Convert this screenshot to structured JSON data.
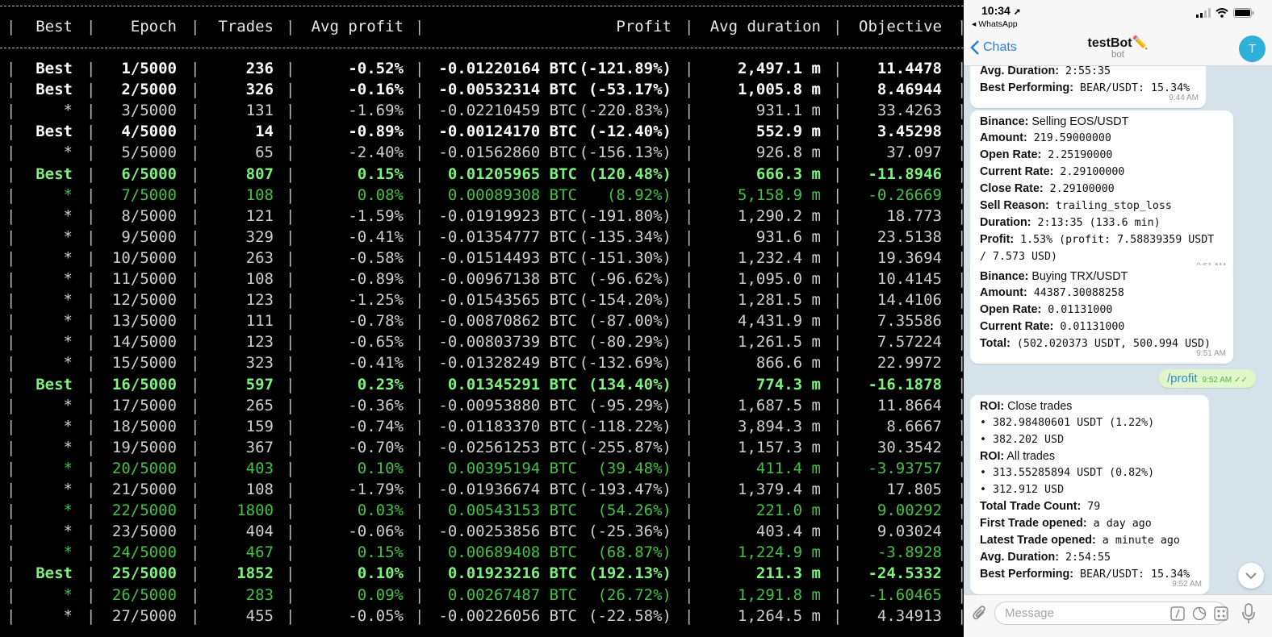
{
  "terminal": {
    "headers": [
      "Best",
      "Epoch",
      "Trades",
      "Avg profit",
      "Profit",
      "Avg duration",
      "Objective"
    ],
    "rows": [
      {
        "style": "best",
        "best": "Best",
        "epoch": "1/5000",
        "trades": "236",
        "avg": "-0.52%",
        "btc": "-0.01220164 BTC",
        "pct": "(-121.89%)",
        "dur": "2,497.1 m",
        "obj": "11.4478"
      },
      {
        "style": "best",
        "best": "Best",
        "epoch": "2/5000",
        "trades": "326",
        "avg": "-0.16%",
        "btc": "-0.00532314 BTC",
        "pct": "(-53.17%)",
        "dur": "1,005.8 m",
        "obj": "8.46944"
      },
      {
        "style": "norm",
        "best": "*",
        "epoch": "3/5000",
        "trades": "131",
        "avg": "-1.69%",
        "btc": "-0.02210459 BTC",
        "pct": "(-220.83%)",
        "dur": "931.1 m",
        "obj": "33.4263"
      },
      {
        "style": "best",
        "best": "Best",
        "epoch": "4/5000",
        "trades": "14",
        "avg": "-0.89%",
        "btc": "-0.00124170 BTC",
        "pct": "(-12.40%)",
        "dur": "552.9 m",
        "obj": "3.45298"
      },
      {
        "style": "norm",
        "best": "*",
        "epoch": "5/5000",
        "trades": "65",
        "avg": "-2.40%",
        "btc": "-0.01562860 BTC",
        "pct": "(-156.13%)",
        "dur": "926.8 m",
        "obj": "37.097"
      },
      {
        "style": "gbest",
        "best": "Best",
        "epoch": "6/5000",
        "trades": "807",
        "avg": "0.15%",
        "btc": "0.01205965 BTC",
        "pct": "(120.48%)",
        "dur": "666.3 m",
        "obj": "-11.8946"
      },
      {
        "style": "green",
        "best": "*",
        "epoch": "7/5000",
        "trades": "108",
        "avg": "0.08%",
        "btc": "0.00089308 BTC",
        "pct": "(8.92%)",
        "dur": "5,158.9 m",
        "obj": "-0.26669"
      },
      {
        "style": "norm",
        "best": "*",
        "epoch": "8/5000",
        "trades": "121",
        "avg": "-1.59%",
        "btc": "-0.01919923 BTC",
        "pct": "(-191.80%)",
        "dur": "1,290.2 m",
        "obj": "18.773"
      },
      {
        "style": "norm",
        "best": "*",
        "epoch": "9/5000",
        "trades": "329",
        "avg": "-0.41%",
        "btc": "-0.01354777 BTC",
        "pct": "(-135.34%)",
        "dur": "931.6 m",
        "obj": "23.5138"
      },
      {
        "style": "norm",
        "best": "*",
        "epoch": "10/5000",
        "trades": "263",
        "avg": "-0.58%",
        "btc": "-0.01514493 BTC",
        "pct": "(-151.30%)",
        "dur": "1,232.4 m",
        "obj": "19.3694"
      },
      {
        "style": "norm",
        "best": "*",
        "epoch": "11/5000",
        "trades": "108",
        "avg": "-0.89%",
        "btc": "-0.00967138 BTC",
        "pct": "(-96.62%)",
        "dur": "1,095.0 m",
        "obj": "10.4145"
      },
      {
        "style": "norm",
        "best": "*",
        "epoch": "12/5000",
        "trades": "123",
        "avg": "-1.25%",
        "btc": "-0.01543565 BTC",
        "pct": "(-154.20%)",
        "dur": "1,281.5 m",
        "obj": "14.4106"
      },
      {
        "style": "norm",
        "best": "*",
        "epoch": "13/5000",
        "trades": "111",
        "avg": "-0.78%",
        "btc": "-0.00870862 BTC",
        "pct": "(-87.00%)",
        "dur": "4,431.9 m",
        "obj": "7.35586"
      },
      {
        "style": "norm",
        "best": "*",
        "epoch": "14/5000",
        "trades": "123",
        "avg": "-0.65%",
        "btc": "-0.00803739 BTC",
        "pct": "(-80.29%)",
        "dur": "1,261.5 m",
        "obj": "7.57224"
      },
      {
        "style": "norm",
        "best": "*",
        "epoch": "15/5000",
        "trades": "323",
        "avg": "-0.41%",
        "btc": "-0.01328249 BTC",
        "pct": "(-132.69%)",
        "dur": "866.6 m",
        "obj": "22.9972"
      },
      {
        "style": "gbest",
        "best": "Best",
        "epoch": "16/5000",
        "trades": "597",
        "avg": "0.23%",
        "btc": "0.01345291 BTC",
        "pct": "(134.40%)",
        "dur": "774.3 m",
        "obj": "-16.1878"
      },
      {
        "style": "norm",
        "best": "*",
        "epoch": "17/5000",
        "trades": "265",
        "avg": "-0.36%",
        "btc": "-0.00953880 BTC",
        "pct": "(-95.29%)",
        "dur": "1,687.5 m",
        "obj": "11.8664"
      },
      {
        "style": "norm",
        "best": "*",
        "epoch": "18/5000",
        "trades": "159",
        "avg": "-0.74%",
        "btc": "-0.01183370 BTC",
        "pct": "(-118.22%)",
        "dur": "3,894.3 m",
        "obj": "8.6667"
      },
      {
        "style": "norm",
        "best": "*",
        "epoch": "19/5000",
        "trades": "367",
        "avg": "-0.70%",
        "btc": "-0.02561253 BTC",
        "pct": "(-255.87%)",
        "dur": "1,157.3 m",
        "obj": "30.3542"
      },
      {
        "style": "green",
        "best": "*",
        "epoch": "20/5000",
        "trades": "403",
        "avg": "0.10%",
        "btc": "0.00395194 BTC",
        "pct": "(39.48%)",
        "dur": "411.4 m",
        "obj": "-3.93757"
      },
      {
        "style": "norm",
        "best": "*",
        "epoch": "21/5000",
        "trades": "108",
        "avg": "-1.79%",
        "btc": "-0.01936674 BTC",
        "pct": "(-193.47%)",
        "dur": "1,379.4 m",
        "obj": "17.805"
      },
      {
        "style": "green",
        "best": "*",
        "epoch": "22/5000",
        "trades": "1800",
        "avg": "0.03%",
        "btc": "0.00543153 BTC",
        "pct": "(54.26%)",
        "dur": "221.0 m",
        "obj": "9.00292"
      },
      {
        "style": "norm",
        "best": "*",
        "epoch": "23/5000",
        "trades": "404",
        "avg": "-0.06%",
        "btc": "-0.00253856 BTC",
        "pct": "(-25.36%)",
        "dur": "403.4 m",
        "obj": "9.03024"
      },
      {
        "style": "green",
        "best": "*",
        "epoch": "24/5000",
        "trades": "467",
        "avg": "0.15%",
        "btc": "0.00689408 BTC",
        "pct": "(68.87%)",
        "dur": "1,224.9 m",
        "obj": "-3.8928"
      },
      {
        "style": "gbest",
        "best": "Best",
        "epoch": "25/5000",
        "trades": "1852",
        "avg": "0.10%",
        "btc": "0.01923216 BTC",
        "pct": "(192.13%)",
        "dur": "211.3 m",
        "obj": "-24.5332"
      },
      {
        "style": "green",
        "best": "*",
        "epoch": "26/5000",
        "trades": "283",
        "avg": "0.09%",
        "btc": "0.00267487 BTC",
        "pct": "(26.72%)",
        "dur": "1,291.8 m",
        "obj": "-1.60465"
      },
      {
        "style": "norm",
        "best": "*",
        "epoch": "27/5000",
        "trades": "455",
        "avg": "-0.05%",
        "btc": "-0.00226056 BTC",
        "pct": "(-22.58%)",
        "dur": "1,264.5 m",
        "obj": "4.34913"
      }
    ]
  },
  "phone": {
    "time": "10:34",
    "back_app": "◂ WhatsApp",
    "back_label": "Chats",
    "bot_name": "testBot",
    "bot_emoji": "✏️",
    "bot_sub": "bot",
    "avatar_letter": "T",
    "input_placeholder": "Message",
    "bubbles": [
      {
        "lines": [
          {
            "label": "Avg. Duration:",
            "value": " 2:55:35",
            "mono": true
          },
          {
            "label": "Best Performing:",
            "value": " BEAR/USDT: 15.34%",
            "mono": true
          }
        ],
        "time": "9:44 AM"
      },
      {
        "lines": [
          {
            "label": "Binance:",
            "value": " Selling EOS/USDT",
            "mono": false
          },
          {
            "label": "Amount:",
            "value": " 219.59000000",
            "mono": true
          },
          {
            "label": "Open Rate:",
            "value": " 2.25190000",
            "mono": true
          },
          {
            "label": "Current Rate:",
            "value": " 2.29100000",
            "mono": true
          },
          {
            "label": "Close Rate:",
            "value": " 2.29100000",
            "mono": true
          },
          {
            "label": "Sell Reason:",
            "value": " trailing_stop_loss",
            "mono": true
          },
          {
            "label": "Duration:",
            "value": " 2:13:35 (133.6 min)",
            "mono": true
          },
          {
            "label": "Profit:",
            "value": " 1.53% (profit: 7.58839359 USDT",
            "mono": true
          },
          {
            "label": "",
            "value": "/ 7.573 USD)",
            "mono": true
          }
        ],
        "time": "9:51 AM"
      },
      {
        "lines": [
          {
            "label": "Binance:",
            "value": " Buying TRX/USDT",
            "mono": false
          },
          {
            "label": "Amount:",
            "value": " 44387.30088258",
            "mono": true
          },
          {
            "label": "Open Rate:",
            "value": " 0.01131000",
            "mono": true
          },
          {
            "label": "Current Rate:",
            "value": " 0.01131000",
            "mono": true
          },
          {
            "label": "Total:",
            "value": " (502.020373 USDT, 500.994 USD)",
            "mono": true
          }
        ],
        "time": "9:51 AM"
      },
      {
        "lines": [
          {
            "label": "ROI:",
            "value": " Close trades",
            "mono": false
          },
          {
            "label": "",
            "value": "• 382.98480601 USDT (1.22%)",
            "mono": true
          },
          {
            "label": "",
            "value": "• 382.202 USD",
            "mono": true
          },
          {
            "label": "ROI:",
            "value": " All trades",
            "mono": false
          },
          {
            "label": "",
            "value": "• 313.55285894 USDT (0.82%)",
            "mono": true
          },
          {
            "label": "",
            "value": "• 312.912 USD",
            "mono": true
          },
          {
            "label": "Total Trade Count:",
            "value": " 79",
            "mono": true
          },
          {
            "label": "First Trade opened:",
            "value": " a day ago",
            "mono": true
          },
          {
            "label": "Latest Trade opened:",
            "value": " a minute ago",
            "mono": true
          },
          {
            "label": "Avg. Duration:",
            "value": " 2:54:55",
            "mono": true
          },
          {
            "label": "Best Performing:",
            "value": " BEAR/USDT: 15.34%",
            "mono": true
          }
        ],
        "time": "9:52 AM"
      }
    ],
    "outgoing": {
      "text": "/profit",
      "time": "9:52 AM",
      "ticks": "✓✓"
    }
  }
}
